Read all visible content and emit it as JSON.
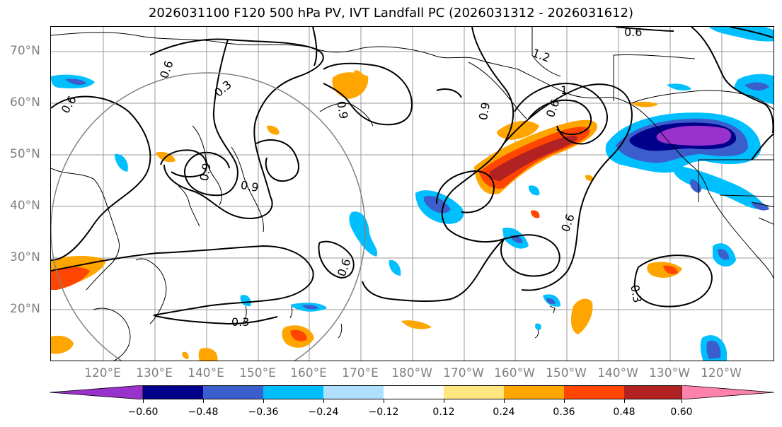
{
  "title": "2026031100 F120 500 hPa PV, IVT Landfall PC (2026031312 - 2026031612)",
  "lat_labels": [
    "70°N",
    "60°N",
    "50°N",
    "40°N",
    "30°N",
    "20°N"
  ],
  "lon_labels": [
    "120°E",
    "130°E",
    "140°E",
    "150°E",
    "160°E",
    "170°E",
    "180°W",
    "170°W",
    "160°W",
    "150°W",
    "140°W",
    "130°W",
    "120°W"
  ],
  "contour_labels": [
    "0.6",
    "0.3",
    "0.6",
    "0.9",
    "1.2",
    "0.9",
    "0.6",
    "0.9",
    "0.9",
    "1",
    "0.6",
    "0.3",
    "0.6",
    "0.3",
    "0.6"
  ],
  "colorbar": {
    "ticks": [
      "−0.60",
      "−0.48",
      "−0.36",
      "−0.24",
      "−0.12",
      "0.12",
      "0.24",
      "0.36",
      "0.48",
      "0.60"
    ],
    "colors": [
      "#9932cc",
      "#00008b",
      "#3a5fcd",
      "#00bfff",
      "#b0e0ff",
      "#ffffff",
      "#ffe680",
      "#ffa500",
      "#ff4500",
      "#b22222",
      "#ff82ab"
    ]
  }
}
